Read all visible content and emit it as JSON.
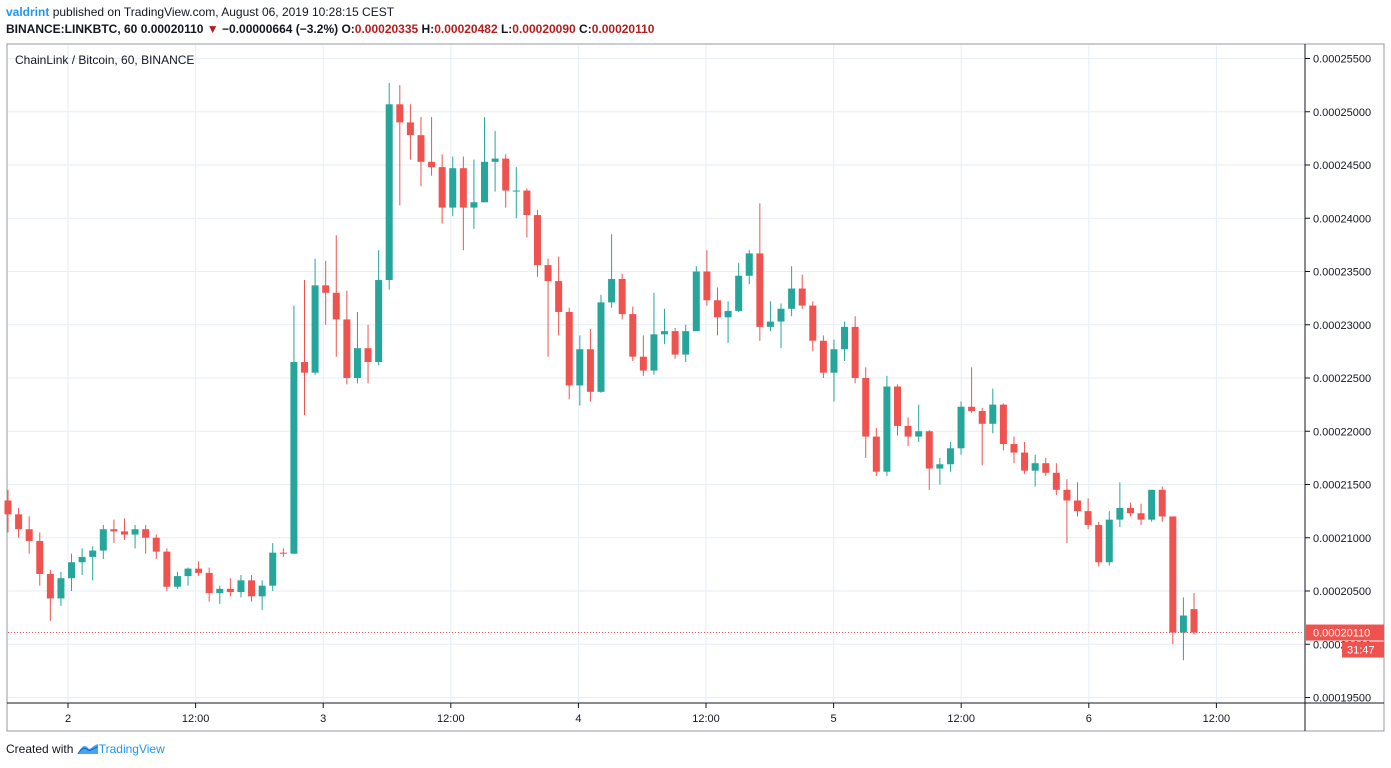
{
  "header": {
    "publisher": "valdrint",
    "published_text": "published on TradingView.com, August 06, 2019 10:28:15 CEST",
    "symbol": "BINANCE:LINKBTC, 60",
    "last": "0.00020110",
    "change_arrow": "▼",
    "change": "−0.00000664 (−3.2%)",
    "o_label": "O:",
    "o": "0.00020335",
    "h_label": "H:",
    "h": "0.00020482",
    "l_label": "L:",
    "l": "0.00020090",
    "c_label": "C:",
    "c": "0.00020110"
  },
  "footer": {
    "created_with": "Created with",
    "brand": "TradingView"
  },
  "colors": {
    "up": "#26a69a",
    "down": "#ef5350",
    "grid": "#e6eef6",
    "axis": "#131722",
    "price_tag": "#ef5350"
  },
  "chart_data": {
    "type": "candlestick",
    "title": "ChainLink / Bitcoin, 60, BINANCE",
    "ylim": [
      0.000194,
      0.000256
    ],
    "y_ticks": [
      "0.00025500",
      "0.00025000",
      "0.00024500",
      "0.00024000",
      "0.00023500",
      "0.00023000",
      "0.00022500",
      "0.00022000",
      "0.00021500",
      "0.00021000",
      "0.00020500",
      "0.00020000",
      "0.00019500"
    ],
    "x_ticks": [
      "2",
      "12:00",
      "3",
      "12:00",
      "4",
      "12:00",
      "5",
      "12:00",
      "6",
      "12:00"
    ],
    "last_price": "0.00020110",
    "countdown": "31:47",
    "candles": [
      {
        "o": 0.0002135,
        "h": 0.0002145,
        "l": 0.0002105,
        "c": 0.0002122
      },
      {
        "o": 0.0002122,
        "h": 0.0002128,
        "l": 0.00021,
        "c": 0.0002108
      },
      {
        "o": 0.0002108,
        "h": 0.000212,
        "l": 0.0002085,
        "c": 0.0002097
      },
      {
        "o": 0.0002097,
        "h": 0.0002105,
        "l": 0.0002055,
        "c": 0.0002066
      },
      {
        "o": 0.0002066,
        "h": 0.000207,
        "l": 0.0002022,
        "c": 0.0002043
      },
      {
        "o": 0.0002043,
        "h": 0.0002068,
        "l": 0.0002036,
        "c": 0.0002062
      },
      {
        "o": 0.0002062,
        "h": 0.0002085,
        "l": 0.000205,
        "c": 0.0002077
      },
      {
        "o": 0.0002077,
        "h": 0.000209,
        "l": 0.0002065,
        "c": 0.0002082
      },
      {
        "o": 0.0002082,
        "h": 0.0002092,
        "l": 0.000206,
        "c": 0.0002088
      },
      {
        "o": 0.0002088,
        "h": 0.0002112,
        "l": 0.000208,
        "c": 0.0002108
      },
      {
        "o": 0.0002108,
        "h": 0.0002117,
        "l": 0.0002095,
        "c": 0.0002106
      },
      {
        "o": 0.0002106,
        "h": 0.0002118,
        "l": 0.0002098,
        "c": 0.0002103
      },
      {
        "o": 0.0002103,
        "h": 0.0002112,
        "l": 0.000209,
        "c": 0.0002108
      },
      {
        "o": 0.0002108,
        "h": 0.0002112,
        "l": 0.0002085,
        "c": 0.00021
      },
      {
        "o": 0.00021,
        "h": 0.0002103,
        "l": 0.000208,
        "c": 0.0002087
      },
      {
        "o": 0.0002087,
        "h": 0.000209,
        "l": 0.000205,
        "c": 0.0002054
      },
      {
        "o": 0.0002054,
        "h": 0.0002068,
        "l": 0.0002052,
        "c": 0.0002064
      },
      {
        "o": 0.0002064,
        "h": 0.0002072,
        "l": 0.0002055,
        "c": 0.0002071
      },
      {
        "o": 0.0002071,
        "h": 0.0002078,
        "l": 0.0002064,
        "c": 0.0002067
      },
      {
        "o": 0.0002067,
        "h": 0.0002072,
        "l": 0.000204,
        "c": 0.0002048
      },
      {
        "o": 0.0002048,
        "h": 0.0002055,
        "l": 0.0002038,
        "c": 0.0002052
      },
      {
        "o": 0.0002052,
        "h": 0.0002062,
        "l": 0.0002045,
        "c": 0.0002049
      },
      {
        "o": 0.0002049,
        "h": 0.0002065,
        "l": 0.0002044,
        "c": 0.000206
      },
      {
        "o": 0.000206,
        "h": 0.0002065,
        "l": 0.000204,
        "c": 0.0002045
      },
      {
        "o": 0.0002045,
        "h": 0.000206,
        "l": 0.0002032,
        "c": 0.0002055
      },
      {
        "o": 0.0002055,
        "h": 0.0002095,
        "l": 0.000205,
        "c": 0.0002086
      },
      {
        "o": 0.0002086,
        "h": 0.000209,
        "l": 0.0002082,
        "c": 0.0002085
      },
      {
        "o": 0.0002085,
        "h": 0.0002318,
        "l": 0.0002085,
        "c": 0.0002265
      },
      {
        "o": 0.0002265,
        "h": 0.0002342,
        "l": 0.0002215,
        "c": 0.0002255
      },
      {
        "o": 0.0002255,
        "h": 0.0002362,
        "l": 0.0002253,
        "c": 0.0002337
      },
      {
        "o": 0.0002337,
        "h": 0.000236,
        "l": 0.00023,
        "c": 0.000233
      },
      {
        "o": 0.000233,
        "h": 0.0002384,
        "l": 0.000227,
        "c": 0.0002305
      },
      {
        "o": 0.0002305,
        "h": 0.0002332,
        "l": 0.0002244,
        "c": 0.000225
      },
      {
        "o": 0.000225,
        "h": 0.0002312,
        "l": 0.0002245,
        "c": 0.0002278
      },
      {
        "o": 0.0002278,
        "h": 0.00023,
        "l": 0.0002245,
        "c": 0.0002265
      },
      {
        "o": 0.0002265,
        "h": 0.000237,
        "l": 0.0002262,
        "c": 0.0002342
      },
      {
        "o": 0.0002342,
        "h": 0.0002527,
        "l": 0.0002333,
        "c": 0.0002507
      },
      {
        "o": 0.0002507,
        "h": 0.0002525,
        "l": 0.0002412,
        "c": 0.000249
      },
      {
        "o": 0.000249,
        "h": 0.0002507,
        "l": 0.0002455,
        "c": 0.0002478
      },
      {
        "o": 0.0002478,
        "h": 0.0002495,
        "l": 0.000243,
        "c": 0.0002453
      },
      {
        "o": 0.0002453,
        "h": 0.0002495,
        "l": 0.000244,
        "c": 0.0002448
      },
      {
        "o": 0.0002448,
        "h": 0.000246,
        "l": 0.0002395,
        "c": 0.000241
      },
      {
        "o": 0.000241,
        "h": 0.0002458,
        "l": 0.0002402,
        "c": 0.0002447
      },
      {
        "o": 0.0002447,
        "h": 0.0002458,
        "l": 0.000237,
        "c": 0.000241
      },
      {
        "o": 0.000241,
        "h": 0.0002455,
        "l": 0.000239,
        "c": 0.0002415
      },
      {
        "o": 0.0002415,
        "h": 0.0002495,
        "l": 0.0002415,
        "c": 0.0002453
      },
      {
        "o": 0.0002453,
        "h": 0.0002482,
        "l": 0.0002425,
        "c": 0.0002456
      },
      {
        "o": 0.0002456,
        "h": 0.000246,
        "l": 0.000241,
        "c": 0.0002426
      },
      {
        "o": 0.0002426,
        "h": 0.0002448,
        "l": 0.00024,
        "c": 0.0002426
      },
      {
        "o": 0.0002426,
        "h": 0.0002428,
        "l": 0.0002382,
        "c": 0.0002403
      },
      {
        "o": 0.0002403,
        "h": 0.0002408,
        "l": 0.0002345,
        "c": 0.0002356
      },
      {
        "o": 0.0002356,
        "h": 0.0002362,
        "l": 0.000227,
        "c": 0.0002341
      },
      {
        "o": 0.0002341,
        "h": 0.0002364,
        "l": 0.000229,
        "c": 0.0002312
      },
      {
        "o": 0.0002312,
        "h": 0.0002316,
        "l": 0.000223,
        "c": 0.0002243
      },
      {
        "o": 0.0002243,
        "h": 0.000229,
        "l": 0.0002224,
        "c": 0.0002277
      },
      {
        "o": 0.0002277,
        "h": 0.0002296,
        "l": 0.0002228,
        "c": 0.0002237
      },
      {
        "o": 0.0002237,
        "h": 0.0002328,
        "l": 0.0002236,
        "c": 0.0002321
      },
      {
        "o": 0.0002321,
        "h": 0.0002385,
        "l": 0.0002316,
        "c": 0.0002343
      },
      {
        "o": 0.0002343,
        "h": 0.0002348,
        "l": 0.0002305,
        "c": 0.000231
      },
      {
        "o": 0.000231,
        "h": 0.0002317,
        "l": 0.0002266,
        "c": 0.000227
      },
      {
        "o": 0.000227,
        "h": 0.000229,
        "l": 0.0002252,
        "c": 0.0002257
      },
      {
        "o": 0.0002257,
        "h": 0.000233,
        "l": 0.0002253,
        "c": 0.0002291
      },
      {
        "o": 0.0002291,
        "h": 0.0002315,
        "l": 0.0002282,
        "c": 0.0002294
      },
      {
        "o": 0.0002294,
        "h": 0.0002297,
        "l": 0.0002268,
        "c": 0.0002272
      },
      {
        "o": 0.0002272,
        "h": 0.00023,
        "l": 0.0002265,
        "c": 0.0002294
      },
      {
        "o": 0.0002294,
        "h": 0.0002355,
        "l": 0.0002294,
        "c": 0.000235
      },
      {
        "o": 0.000235,
        "h": 0.000237,
        "l": 0.0002318,
        "c": 0.0002323
      },
      {
        "o": 0.0002323,
        "h": 0.0002335,
        "l": 0.000229,
        "c": 0.0002307
      },
      {
        "o": 0.0002307,
        "h": 0.0002322,
        "l": 0.0002283,
        "c": 0.0002313
      },
      {
        "o": 0.0002313,
        "h": 0.0002358,
        "l": 0.0002312,
        "c": 0.0002346
      },
      {
        "o": 0.0002346,
        "h": 0.000237,
        "l": 0.0002338,
        "c": 0.0002367
      },
      {
        "o": 0.0002367,
        "h": 0.0002414,
        "l": 0.0002285,
        "c": 0.0002298
      },
      {
        "o": 0.0002298,
        "h": 0.0002322,
        "l": 0.0002294,
        "c": 0.0002303
      },
      {
        "o": 0.0002303,
        "h": 0.000232,
        "l": 0.0002278,
        "c": 0.0002315
      },
      {
        "o": 0.0002315,
        "h": 0.0002355,
        "l": 0.0002308,
        "c": 0.0002334
      },
      {
        "o": 0.0002334,
        "h": 0.0002347,
        "l": 0.0002315,
        "c": 0.0002318
      },
      {
        "o": 0.0002318,
        "h": 0.0002322,
        "l": 0.0002275,
        "c": 0.0002285
      },
      {
        "o": 0.0002285,
        "h": 0.000229,
        "l": 0.000225,
        "c": 0.0002255
      },
      {
        "o": 0.0002255,
        "h": 0.0002286,
        "l": 0.0002228,
        "c": 0.0002277
      },
      {
        "o": 0.0002277,
        "h": 0.0002303,
        "l": 0.0002266,
        "c": 0.0002298
      },
      {
        "o": 0.0002298,
        "h": 0.0002308,
        "l": 0.0002245,
        "c": 0.000225
      },
      {
        "o": 0.000225,
        "h": 0.000226,
        "l": 0.0002175,
        "c": 0.0002195
      },
      {
        "o": 0.0002195,
        "h": 0.0002203,
        "l": 0.0002158,
        "c": 0.0002162
      },
      {
        "o": 0.0002162,
        "h": 0.0002252,
        "l": 0.0002158,
        "c": 0.0002242
      },
      {
        "o": 0.0002242,
        "h": 0.0002244,
        "l": 0.0002196,
        "c": 0.0002205
      },
      {
        "o": 0.0002205,
        "h": 0.0002213,
        "l": 0.0002186,
        "c": 0.0002195
      },
      {
        "o": 0.0002195,
        "h": 0.0002225,
        "l": 0.000219,
        "c": 0.00022
      },
      {
        "o": 0.00022,
        "h": 0.0002201,
        "l": 0.0002145,
        "c": 0.0002165
      },
      {
        "o": 0.0002165,
        "h": 0.0002175,
        "l": 0.000215,
        "c": 0.0002169
      },
      {
        "o": 0.0002169,
        "h": 0.000219,
        "l": 0.0002162,
        "c": 0.0002184
      },
      {
        "o": 0.0002184,
        "h": 0.0002228,
        "l": 0.0002178,
        "c": 0.0002223
      },
      {
        "o": 0.0002223,
        "h": 0.000226,
        "l": 0.0002217,
        "c": 0.0002219
      },
      {
        "o": 0.0002219,
        "h": 0.0002222,
        "l": 0.0002168,
        "c": 0.0002207
      },
      {
        "o": 0.0002207,
        "h": 0.000224,
        "l": 0.0002198,
        "c": 0.0002225
      },
      {
        "o": 0.0002225,
        "h": 0.0002226,
        "l": 0.0002182,
        "c": 0.0002188
      },
      {
        "o": 0.0002188,
        "h": 0.0002195,
        "l": 0.000217,
        "c": 0.000218
      },
      {
        "o": 0.000218,
        "h": 0.000219,
        "l": 0.000216,
        "c": 0.0002163
      },
      {
        "o": 0.0002163,
        "h": 0.0002178,
        "l": 0.0002148,
        "c": 0.000217
      },
      {
        "o": 0.000217,
        "h": 0.0002175,
        "l": 0.0002158,
        "c": 0.0002161
      },
      {
        "o": 0.0002161,
        "h": 0.000217,
        "l": 0.000214,
        "c": 0.0002145
      },
      {
        "o": 0.0002145,
        "h": 0.0002155,
        "l": 0.0002095,
        "c": 0.0002135
      },
      {
        "o": 0.0002135,
        "h": 0.0002152,
        "l": 0.000212,
        "c": 0.0002125
      },
      {
        "o": 0.0002125,
        "h": 0.0002137,
        "l": 0.0002108,
        "c": 0.0002112
      },
      {
        "o": 0.0002112,
        "h": 0.0002115,
        "l": 0.0002073,
        "c": 0.0002077
      },
      {
        "o": 0.0002077,
        "h": 0.0002125,
        "l": 0.0002074,
        "c": 0.0002117
      },
      {
        "o": 0.0002117,
        "h": 0.0002152,
        "l": 0.000211,
        "c": 0.0002128
      },
      {
        "o": 0.0002128,
        "h": 0.0002133,
        "l": 0.000212,
        "c": 0.0002123
      },
      {
        "o": 0.0002123,
        "h": 0.0002132,
        "l": 0.0002112,
        "c": 0.0002117
      },
      {
        "o": 0.0002117,
        "h": 0.0002145,
        "l": 0.0002115,
        "c": 0.0002145
      },
      {
        "o": 0.0002145,
        "h": 0.0002148,
        "l": 0.0002115,
        "c": 0.000212
      },
      {
        "o": 0.000212,
        "h": 0.000212,
        "l": 0.0002,
        "c": 0.0002011
      },
      {
        "o": 0.0002011,
        "h": 0.0002044,
        "l": 0.0001985,
        "c": 0.0002027
      },
      {
        "o": 0.0002033,
        "h": 0.0002048,
        "l": 0.0002009,
        "c": 0.0002011
      }
    ]
  }
}
